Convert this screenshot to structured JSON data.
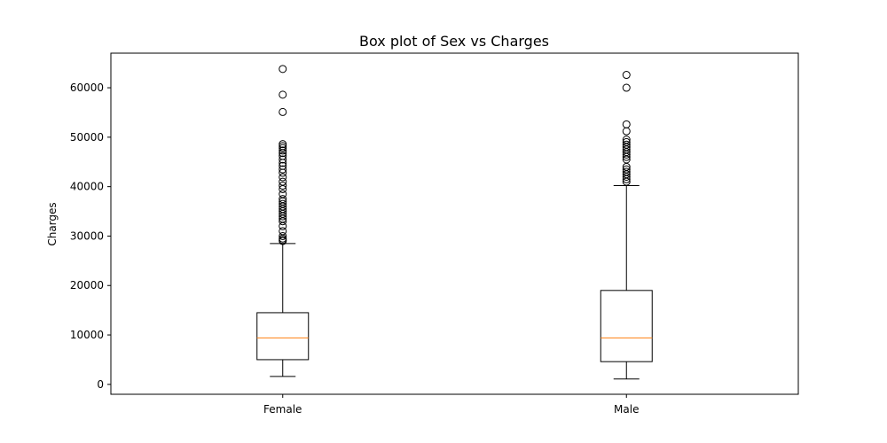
{
  "chart_data": {
    "type": "box",
    "title": "Box plot of Sex vs Charges",
    "xlabel": "",
    "ylabel": "Charges",
    "ylim": [
      -2000,
      67000
    ],
    "yticks": [
      0,
      10000,
      20000,
      30000,
      40000,
      50000,
      60000
    ],
    "ytick_labels": [
      "0",
      "10000",
      "20000",
      "30000",
      "40000",
      "50000",
      "60000"
    ],
    "grid": false,
    "colors": {
      "box": "#000000",
      "median": "#ff7f0e",
      "flier": "#000000"
    },
    "categories": [
      "Female",
      "Male"
    ],
    "boxes": [
      {
        "name": "Female",
        "whisker_low": 1600,
        "q1": 5000,
        "median": 9400,
        "q3": 14500,
        "whisker_high": 28500,
        "fliers": [
          29000,
          29200,
          29500,
          30000,
          31000,
          32000,
          33000,
          33500,
          34000,
          34500,
          35000,
          35500,
          36000,
          36500,
          37000,
          37500,
          38500,
          39500,
          40200,
          41000,
          41900,
          42800,
          43500,
          44200,
          44800,
          45500,
          46200,
          46800,
          47300,
          47800,
          48200,
          48600,
          55100,
          58600,
          63800
        ]
      },
      {
        "name": "Male",
        "whisker_low": 1100,
        "q1": 4600,
        "median": 9400,
        "q3": 19000,
        "whisker_high": 40200,
        "fliers": [
          41000,
          41500,
          42000,
          42500,
          43000,
          43500,
          44000,
          45500,
          46000,
          46500,
          47000,
          47500,
          48000,
          48500,
          49000,
          49500,
          51200,
          52600,
          60000,
          62600
        ]
      }
    ]
  }
}
